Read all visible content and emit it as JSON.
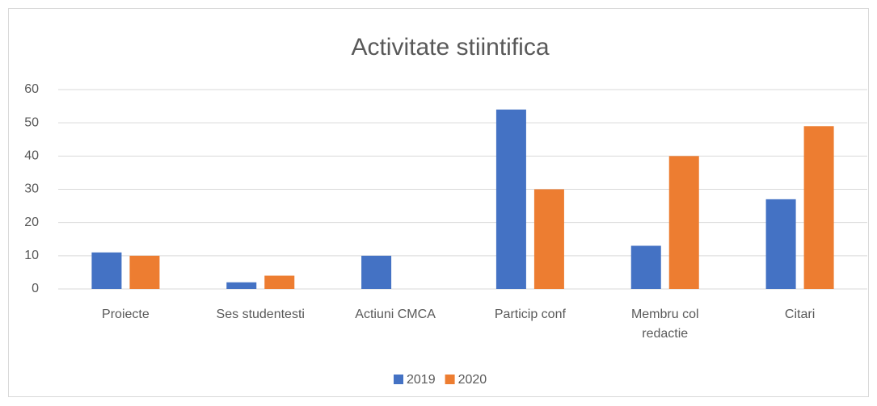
{
  "chart_data": {
    "type": "bar",
    "title": "Activitate stiintifica",
    "categories": [
      "Proiecte",
      "Ses studentesti",
      "Actiuni CMCA",
      "Particip conf",
      "Membru col redactie",
      "Citari"
    ],
    "series": [
      {
        "name": "2019",
        "color": "#4472c4",
        "values": [
          11,
          2,
          10,
          54,
          13,
          27
        ]
      },
      {
        "name": "2020",
        "color": "#ed7d31",
        "values": [
          10,
          4,
          0,
          30,
          40,
          49
        ]
      }
    ],
    "ylim": [
      0,
      60
    ],
    "yticks": [
      0,
      10,
      20,
      30,
      40,
      50,
      60
    ],
    "grid": true,
    "legend": "bottom"
  }
}
